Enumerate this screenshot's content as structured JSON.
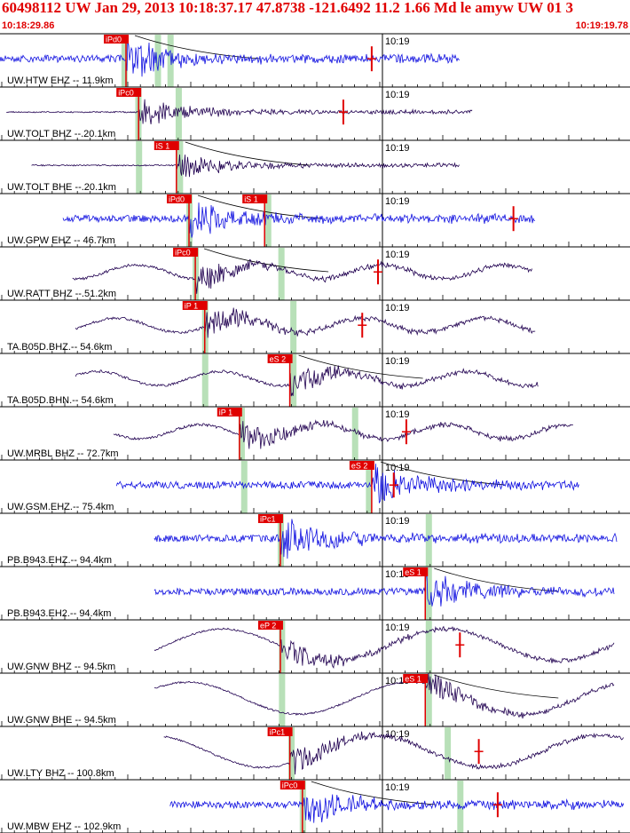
{
  "header": {
    "title": "60498112 UW Jan 29, 2013 10:18:37.17   47.8738 -121.6492 11.2 1.66 Md le amyw UW 01   3",
    "start_time": "10:18:29.86",
    "end_time": "10:19:19.78"
  },
  "colors": {
    "header_text": "#e00000",
    "pick_box": "#e00000",
    "window_bar": "#b8e0b8",
    "trace_blue": "#1010e0",
    "trace_dark": "#200050",
    "grid": "#000000",
    "travel_curve": "#000000"
  },
  "chart_data": {
    "type": "line",
    "title": "60498112 UW Jan 29, 2013 10:18:37.17   47.8738 -121.6492 11.2 1.66 Md le amyw UW 01   3",
    "xlabel": "",
    "ylabel": "",
    "time_marker_label": "10:19",
    "xlim": [
      "10:18:29.86",
      "10:19:19.78"
    ],
    "grid": "vertical minute ticks, horizontal panel separators",
    "series": [
      {
        "name": "UW.HTW EHZ -- 11.9km",
        "color": "blue",
        "trace_start": 0.0,
        "trace_end": 0.73,
        "pick": {
          "label": "iPd0",
          "pos": 0.2
        },
        "windows": [
          0.197,
          0.25,
          0.27
        ],
        "amplitude": "high",
        "wave": "noise",
        "event_onset": 0.2,
        "marker": 0.59
      },
      {
        "name": "UW.TOLT BHZ --.20.1km",
        "color": "dark",
        "trace_start": 0.01,
        "trace_end": 0.75,
        "pick": {
          "label": "iPc0",
          "pos": 0.22
        },
        "windows": [
          0.219,
          0.283
        ],
        "amplitude": "medium",
        "wave": "flat",
        "event_onset": 0.22,
        "marker": 0.545
      },
      {
        "name": "UW.TOLT BHE --.20.1km",
        "color": "dark",
        "trace_start": 0.05,
        "trace_end": 0.73,
        "pick": {
          "label": "iS 1",
          "pos": 0.28
        },
        "windows": [
          0.22,
          0.285
        ],
        "amplitude": "medium",
        "wave": "flat",
        "event_onset": 0.28,
        "marker": null
      },
      {
        "name": "UW.GPW EHZ -- 46.7km",
        "color": "blue",
        "trace_start": 0.1,
        "trace_end": 0.85,
        "pick": {
          "label": "iPd0",
          "pos": 0.3
        },
        "secondary_pick": {
          "label": "iS 1",
          "pos": 0.42
        },
        "windows": [
          0.3,
          0.425
        ],
        "amplitude": "high",
        "wave": "noise",
        "event_onset": 0.3,
        "marker": 0.815
      },
      {
        "name": "UW.RATT BHZ --.51.2km",
        "color": "dark",
        "trace_start": 0.115,
        "trace_end": 0.845,
        "pick": {
          "label": "iPc0",
          "pos": 0.31
        },
        "windows": [
          0.31,
          0.446
        ],
        "amplitude": "medium",
        "wave": "swell",
        "event_onset": 0.31,
        "marker": 0.6
      },
      {
        "name": "TA.B05D.BHZ.-- 54.6km",
        "color": "dark",
        "trace_start": 0.12,
        "trace_end": 0.85,
        "pick": {
          "label": "iP 1",
          "pos": 0.325
        },
        "windows": [
          0.325,
          0.465
        ],
        "amplitude": "medium",
        "wave": "swell",
        "event_onset": 0.325,
        "marker": 0.575
      },
      {
        "name": "TA.B05D.BHN.-- 54.6km",
        "color": "dark",
        "trace_start": 0.12,
        "trace_end": 0.855,
        "pick": {
          "label": "eS 2",
          "pos": 0.46
        },
        "windows": [
          0.325,
          0.465
        ],
        "amplitude": "medium",
        "wave": "swell",
        "event_onset": 0.46,
        "marker": null
      },
      {
        "name": "UW.MRBL BHZ -- 72.7km",
        "color": "dark",
        "trace_start": 0.18,
        "trace_end": 0.91,
        "pick": {
          "label": "iP 1",
          "pos": 0.38
        },
        "windows": [
          0.383,
          0.563
        ],
        "amplitude": "medium",
        "wave": "swell",
        "event_onset": 0.38,
        "marker": 0.645
      },
      {
        "name": "UW.GSM.EHZ.-- 75.4km",
        "color": "blue",
        "trace_start": 0.185,
        "trace_end": 0.92,
        "pick": {
          "label": "eS 2",
          "pos": 0.59
        },
        "windows": [
          0.387,
          0.585
        ],
        "amplitude": "high",
        "wave": "noise",
        "event_onset": 0.59,
        "marker": 0.625
      },
      {
        "name": "PB.B943.EHZ.-- 94.4km",
        "color": "blue",
        "trace_start": 0.245,
        "trace_end": 0.98,
        "pick": {
          "label": "iPc1",
          "pos": 0.445
        },
        "windows": [
          0.445,
          0.68
        ],
        "amplitude": "high",
        "wave": "noise",
        "event_onset": 0.445,
        "marker": null
      },
      {
        "name": "PB.B943.EH2.-- 94.4km",
        "color": "blue",
        "trace_start": 0.245,
        "trace_end": 0.975,
        "pick": {
          "label": "eS 1",
          "pos": 0.675
        },
        "windows": [
          0.68
        ],
        "amplitude": "high",
        "wave": "noise",
        "event_onset": 0.675,
        "marker": null
      },
      {
        "name": "UW.GNW BHZ -- 94.5km",
        "color": "dark",
        "trace_start": 0.245,
        "trace_end": 0.975,
        "pick": {
          "label": "eP 2",
          "pos": 0.445
        },
        "windows": [
          0.447,
          0.68
        ],
        "amplitude": "medium",
        "wave": "big-swell",
        "event_onset": 0.445,
        "marker": 0.73
      },
      {
        "name": "UW.GNW BHE -- 94.5km",
        "color": "dark",
        "trace_start": 0.245,
        "trace_end": 0.975,
        "pick": {
          "label": "eS 1",
          "pos": 0.675
        },
        "windows": [
          0.447,
          0.68
        ],
        "amplitude": "medium",
        "wave": "big-swell",
        "event_onset": 0.675,
        "marker": null
      },
      {
        "name": "UW.LTY BHZ -- 100.8km",
        "color": "dark",
        "trace_start": 0.26,
        "trace_end": 0.99,
        "pick": {
          "label": "iPc1",
          "pos": 0.46
        },
        "windows": [
          0.462,
          0.71
        ],
        "amplitude": "medium",
        "wave": "big-swell",
        "event_onset": 0.46,
        "marker": 0.76
      },
      {
        "name": "UW.MBW EHZ -- 102.9km",
        "color": "blue",
        "trace_start": 0.27,
        "trace_end": 0.99,
        "pick": {
          "label": "iPc0",
          "pos": 0.48
        },
        "windows": [
          0.48,
          0.73
        ],
        "amplitude": "high",
        "wave": "noise",
        "event_onset": 0.48,
        "marker": 0.79
      }
    ]
  }
}
